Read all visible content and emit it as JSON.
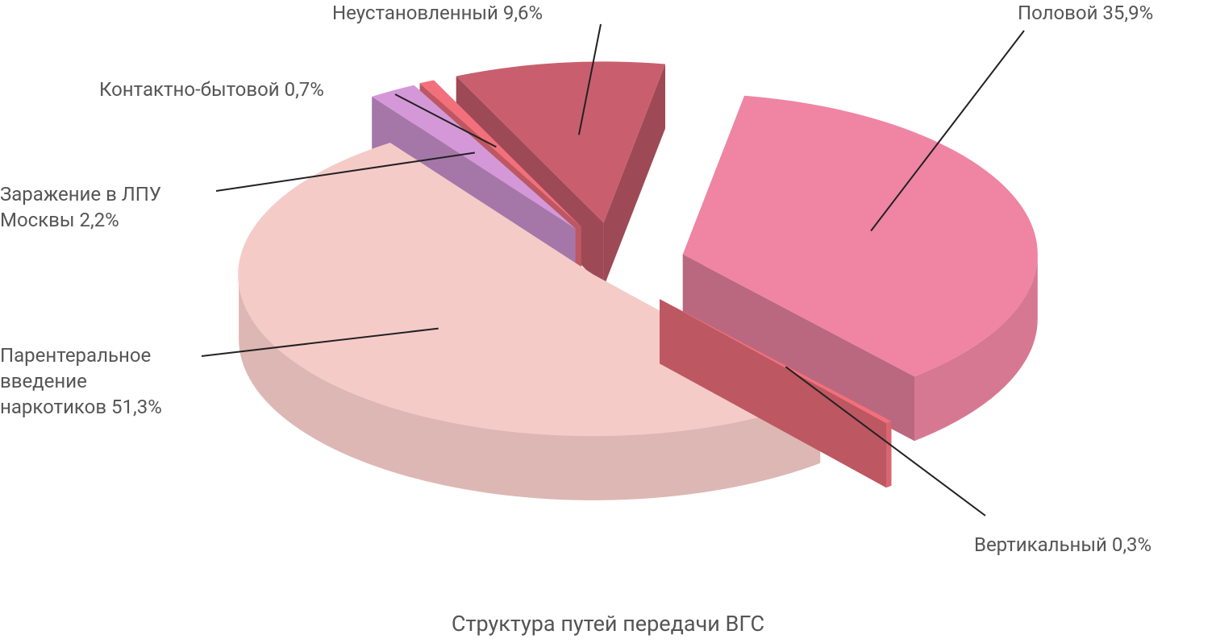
{
  "chart_data": {
    "type": "pie3d",
    "title": "Структура путей передачи ВГС",
    "categories": [
      "Половой",
      "Вертикальный",
      "Парентеральное введение наркотиков",
      "Заражение в ЛПУ Москвы",
      "Контактно-бытовой",
      "Неустановленный"
    ],
    "values": [
      35.9,
      0.3,
      51.3,
      2.2,
      0.7,
      9.6
    ],
    "value_labels": [
      "35,9%",
      "0,3%",
      "51,3%",
      "2,2%",
      "0,7%",
      "9,6%"
    ],
    "colors": [
      "#ef85a3",
      "#f2707c",
      "#f5cbc8",
      "#d498d8",
      "#f2707c",
      "#c95f6e"
    ]
  }
}
